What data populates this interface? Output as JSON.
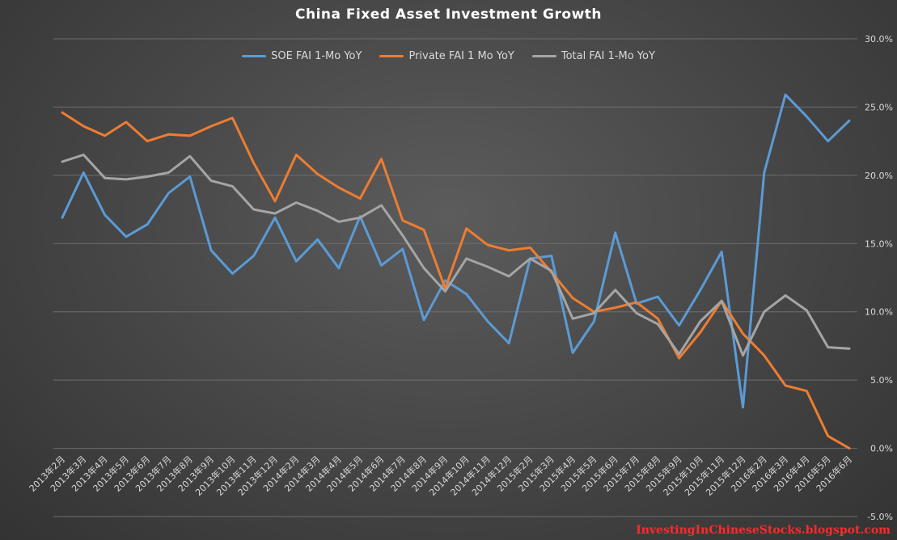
{
  "chart_data": {
    "type": "line",
    "title": "China Fixed Asset Investment Growth",
    "xlabel": "",
    "ylabel": "",
    "ylim": [
      -5,
      30
    ],
    "y_ticks": [
      "-5.0%",
      "0.0%",
      "5.0%",
      "10.0%",
      "15.0%",
      "20.0%",
      "25.0%",
      "30.0%"
    ],
    "y_tick_values": [
      -5,
      0,
      5,
      10,
      15,
      20,
      25,
      30
    ],
    "legend_position": "top-center",
    "grid": true,
    "categories": [
      "2013年2月",
      "2013年3月",
      "2013年4月",
      "2013年5月",
      "2013年6月",
      "2013年7月",
      "2013年8月",
      "2013年9月",
      "2013年10月",
      "2013年11月",
      "2013年12月",
      "2014年2月",
      "2014年3月",
      "2014年4月",
      "2014年5月",
      "2014年6月",
      "2014年7月",
      "2014年8月",
      "2014年9月",
      "2014年10月",
      "2014年11月",
      "2014年12月",
      "2015年2月",
      "2015年3月",
      "2015年4月",
      "2015年5月",
      "2015年6月",
      "2015年7月",
      "2015年8月",
      "2015年9月",
      "2015年10月",
      "2015年11月",
      "2015年12月",
      "2016年2月",
      "2016年3月",
      "2016年4月",
      "2016年5月",
      "2016年6月"
    ],
    "series": [
      {
        "name": "SOE FAI 1-Mo YoY",
        "color": "#5b9bd5",
        "values": [
          16.9,
          20.2,
          17.1,
          15.5,
          16.4,
          18.7,
          19.9,
          14.5,
          12.8,
          14.1,
          16.9,
          13.7,
          15.3,
          13.2,
          17.0,
          13.4,
          14.6,
          9.4,
          12.3,
          11.3,
          9.3,
          7.7,
          13.9,
          14.1,
          7.0,
          9.3,
          15.8,
          10.6,
          11.1,
          9.0,
          11.6,
          14.4,
          3.0,
          20.2,
          25.9,
          24.3,
          22.5,
          24.0
        ]
      },
      {
        "name": "Private FAI 1 Mo YoY",
        "color": "#ed7d31",
        "values": [
          24.6,
          23.6,
          22.9,
          23.9,
          22.5,
          23.0,
          22.9,
          23.6,
          24.2,
          20.9,
          18.1,
          21.5,
          20.1,
          19.1,
          18.3,
          21.2,
          16.7,
          16.0,
          11.7,
          16.1,
          14.9,
          14.5,
          14.7,
          12.9,
          11.0,
          10.0,
          10.3,
          10.7,
          9.5,
          6.6,
          8.5,
          10.8,
          8.4,
          6.8,
          4.6,
          4.2,
          0.9,
          0.0
        ]
      },
      {
        "name": "Total FAI 1-Mo YoY",
        "color": "#a5a5a5",
        "values": [
          21.0,
          21.5,
          19.8,
          19.7,
          19.9,
          20.2,
          21.4,
          19.6,
          19.2,
          17.5,
          17.2,
          18.0,
          17.4,
          16.6,
          16.9,
          17.8,
          15.6,
          13.2,
          11.5,
          13.9,
          13.3,
          12.6,
          13.9,
          13.0,
          9.5,
          9.9,
          11.6,
          9.9,
          9.1,
          6.9,
          9.3,
          10.8,
          6.8,
          10.0,
          11.2,
          10.1,
          7.4,
          7.3
        ]
      }
    ]
  },
  "watermark": "InvestingInChineseStocks.blogspot.com"
}
